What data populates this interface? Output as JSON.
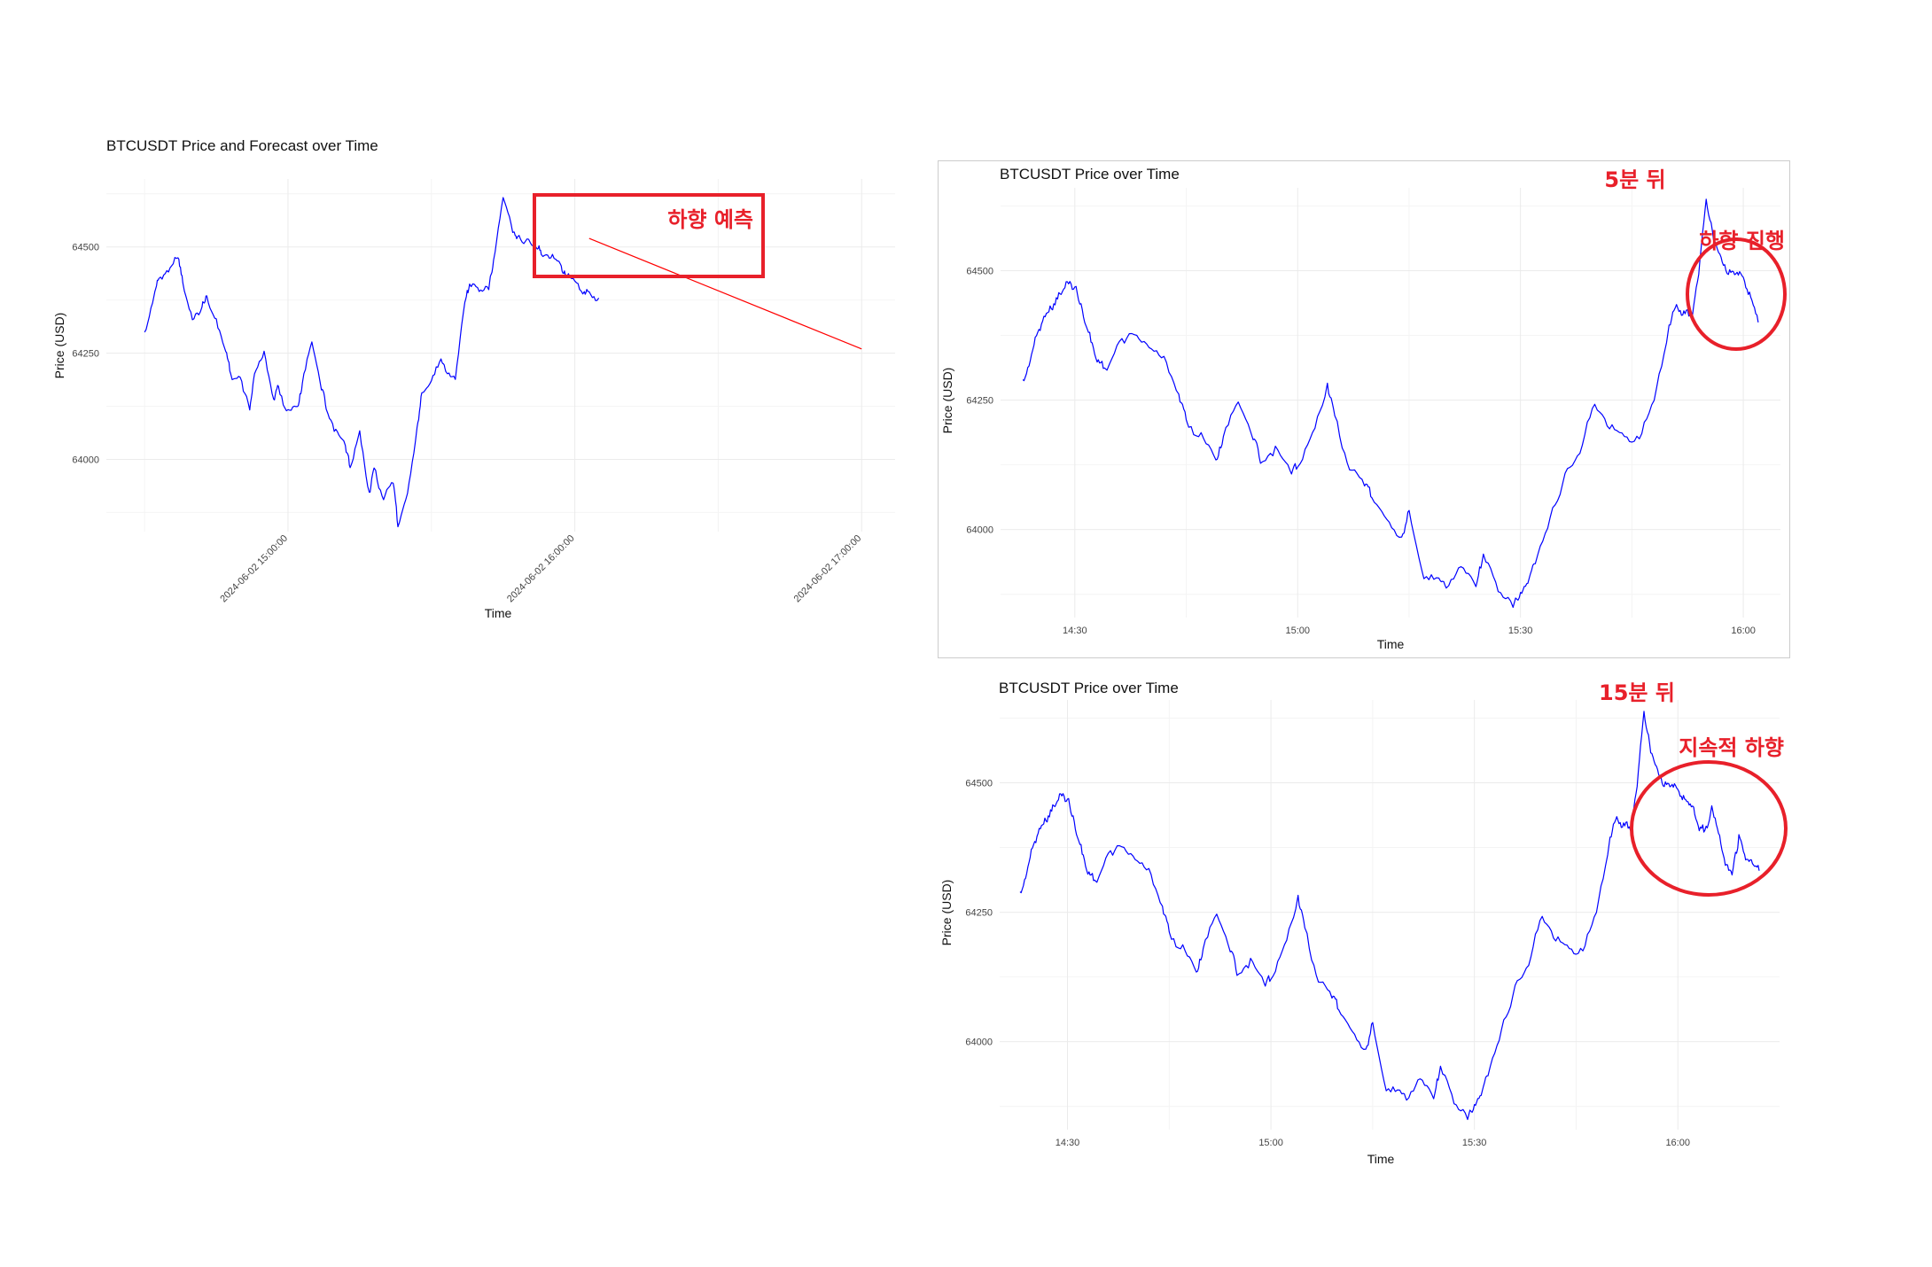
{
  "chart_data": [
    {
      "id": "forecast",
      "type": "line",
      "title": "BTCUSDT Price and Forecast over Time",
      "xlabel": "Time",
      "ylabel": "Price (USD)",
      "xlim": [
        "2024-06-02 14:22",
        "2024-06-02 17:07"
      ],
      "ylim": [
        63830,
        64660
      ],
      "x_ticks": [
        {
          "value": "2024-06-02 15:00",
          "label": "2024-06-02 15:00:00"
        },
        {
          "value": "2024-06-02 16:00",
          "label": "2024-06-02 16:00:00"
        },
        {
          "value": "2024-06-02 17:00",
          "label": "2024-06-02 17:00:00"
        }
      ],
      "y_ticks": [
        {
          "value": 64000,
          "label": "64000"
        },
        {
          "value": 64250,
          "label": "64250"
        },
        {
          "value": 64500,
          "label": "64500"
        }
      ],
      "x_tick_rotation": -45,
      "grid": true,
      "series": [
        {
          "color": "#0000ff",
          "x": [
            "2024-06-02 14:30",
            "2024-06-02 14:32",
            "2024-06-02 14:33",
            "2024-06-02 14:35",
            "2024-06-02 14:37",
            "2024-06-02 14:38",
            "2024-06-02 14:40",
            "2024-06-02 14:42",
            "2024-06-02 14:43",
            "2024-06-02 14:45",
            "2024-06-02 14:47",
            "2024-06-02 14:48",
            "2024-06-02 14:50",
            "2024-06-02 14:52",
            "2024-06-02 14:53",
            "2024-06-02 14:55",
            "2024-06-02 14:57",
            "2024-06-02 14:58",
            "2024-06-02 15:00",
            "2024-06-02 15:02",
            "2024-06-02 15:03",
            "2024-06-02 15:05",
            "2024-06-02 15:07",
            "2024-06-02 15:08",
            "2024-06-02 15:10",
            "2024-06-02 15:12",
            "2024-06-02 15:13",
            "2024-06-02 15:15",
            "2024-06-02 15:17",
            "2024-06-02 15:18",
            "2024-06-02 15:20",
            "2024-06-02 15:22",
            "2024-06-02 15:23",
            "2024-06-02 15:25",
            "2024-06-02 15:27",
            "2024-06-02 15:28",
            "2024-06-02 15:30",
            "2024-06-02 15:32",
            "2024-06-02 15:33",
            "2024-06-02 15:35",
            "2024-06-02 15:37",
            "2024-06-02 15:38",
            "2024-06-02 15:40",
            "2024-06-02 15:42",
            "2024-06-02 15:43",
            "2024-06-02 15:45",
            "2024-06-02 15:47",
            "2024-06-02 15:48",
            "2024-06-02 15:50",
            "2024-06-02 15:52",
            "2024-06-02 15:53",
            "2024-06-02 15:55",
            "2024-06-02 15:57",
            "2024-06-02 15:58",
            "2024-06-02 16:00",
            "2024-06-02 16:02",
            "2024-06-02 16:03",
            "2024-06-02 16:05"
          ],
          "values": [
            64290,
            64390,
            64425,
            64450,
            64480,
            64410,
            64330,
            64360,
            64380,
            64330,
            64260,
            64200,
            64190,
            64120,
            64200,
            64250,
            64140,
            64170,
            64110,
            64130,
            64180,
            64280,
            64170,
            64120,
            64070,
            64030,
            63980,
            64060,
            63920,
            63980,
            63910,
            63950,
            63850,
            63920,
            64070,
            64150,
            64180,
            64250,
            64200,
            64190,
            64380,
            64410,
            64395,
            64400,
            64470,
            64620,
            64540,
            64520,
            64510,
            64500,
            64490,
            64480,
            64460,
            64440,
            64420,
            64400,
            64390,
            64380
          ]
        },
        {
          "color": "#ff0000",
          "x": [
            "2024-06-02 16:03",
            "2024-06-02 17:00"
          ],
          "values": [
            64520,
            64260
          ]
        }
      ],
      "annotations": [
        {
          "type": "box",
          "text": "하향 예측",
          "color": "#e8202a"
        }
      ]
    },
    {
      "id": "after-5min",
      "type": "line",
      "title": "BTCUSDT Price over Time",
      "xlabel": "Time",
      "ylabel": "Price (USD)",
      "xlim": [
        "2024-06-02 14:20",
        "2024-06-02 16:05"
      ],
      "ylim": [
        63830,
        64660
      ],
      "x_ticks": [
        {
          "value": "2024-06-02 14:30",
          "label": "14:30"
        },
        {
          "value": "2024-06-02 15:00",
          "label": "15:00"
        },
        {
          "value": "2024-06-02 15:30",
          "label": "15:30"
        },
        {
          "value": "2024-06-02 16:00",
          "label": "16:00"
        }
      ],
      "y_ticks": [
        {
          "value": 64000,
          "label": "64000"
        },
        {
          "value": 64250,
          "label": "64250"
        },
        {
          "value": 64500,
          "label": "64500"
        }
      ],
      "grid": true,
      "series": [
        {
          "color": "#0000ff",
          "x": [
            "2024-06-02 14:23",
            "2024-06-02 14:24",
            "2024-06-02 14:25",
            "2024-06-02 14:26",
            "2024-06-02 14:27",
            "2024-06-02 14:28",
            "2024-06-02 14:29",
            "2024-06-02 14:30",
            "2024-06-02 14:31",
            "2024-06-02 14:32",
            "2024-06-02 14:33",
            "2024-06-02 14:34",
            "2024-06-02 14:36",
            "2024-06-02 14:38",
            "2024-06-02 14:40",
            "2024-06-02 14:42",
            "2024-06-02 14:44",
            "2024-06-02 14:45",
            "2024-06-02 14:47",
            "2024-06-02 14:49",
            "2024-06-02 14:50",
            "2024-06-02 14:52",
            "2024-06-02 14:54",
            "2024-06-02 14:55",
            "2024-06-02 14:57",
            "2024-06-02 14:59",
            "2024-06-02 15:00",
            "2024-06-02 15:02",
            "2024-06-02 15:04",
            "2024-06-02 15:05",
            "2024-06-02 15:07",
            "2024-06-02 15:09",
            "2024-06-02 15:10",
            "2024-06-02 15:12",
            "2024-06-02 15:14",
            "2024-06-02 15:15",
            "2024-06-02 15:17",
            "2024-06-02 15:19",
            "2024-06-02 15:20",
            "2024-06-02 15:22",
            "2024-06-02 15:24",
            "2024-06-02 15:25",
            "2024-06-02 15:27",
            "2024-06-02 15:29",
            "2024-06-02 15:30",
            "2024-06-02 15:31",
            "2024-06-02 15:32",
            "2024-06-02 15:34",
            "2024-06-02 15:36",
            "2024-06-02 15:38",
            "2024-06-02 15:40",
            "2024-06-02 15:42",
            "2024-06-02 15:44",
            "2024-06-02 15:46",
            "2024-06-02 15:48",
            "2024-06-02 15:50",
            "2024-06-02 15:51",
            "2024-06-02 15:52",
            "2024-06-02 15:53",
            "2024-06-02 15:54",
            "2024-06-02 15:55",
            "2024-06-02 15:56",
            "2024-06-02 15:57",
            "2024-06-02 15:58",
            "2024-06-02 15:59",
            "2024-06-02 16:00",
            "2024-06-02 16:01",
            "2024-06-02 16:02"
          ],
          "values": [
            64280,
            64330,
            64380,
            64420,
            64430,
            64450,
            64480,
            64470,
            64420,
            64380,
            64330,
            64310,
            64360,
            64380,
            64350,
            64330,
            64260,
            64210,
            64180,
            64140,
            64180,
            64250,
            64180,
            64130,
            64160,
            64110,
            64120,
            64180,
            64280,
            64220,
            64120,
            64090,
            64070,
            64020,
            63980,
            64030,
            63900,
            63920,
            63880,
            63930,
            63900,
            63950,
            63880,
            63850,
            63880,
            63900,
            63940,
            64020,
            64100,
            64150,
            64250,
            64200,
            64180,
            64180,
            64250,
            64400,
            64430,
            64420,
            64410,
            64500,
            64640,
            64560,
            64520,
            64500,
            64490,
            64480,
            64450,
            64400
          ]
        }
      ],
      "annotations": [
        {
          "type": "label",
          "text": "5분 뒤",
          "color": "#e8202a"
        },
        {
          "type": "circle",
          "text": "하향 진행",
          "color": "#e8202a"
        }
      ]
    },
    {
      "id": "after-15min",
      "type": "line",
      "title": "BTCUSDT Price over Time",
      "xlabel": "Time",
      "ylabel": "Price (USD)",
      "xlim": [
        "2024-06-02 14:20",
        "2024-06-02 16:15"
      ],
      "ylim": [
        63830,
        64660
      ],
      "x_ticks": [
        {
          "value": "2024-06-02 14:30",
          "label": "14:30"
        },
        {
          "value": "2024-06-02 15:00",
          "label": "15:00"
        },
        {
          "value": "2024-06-02 15:30",
          "label": "15:30"
        },
        {
          "value": "2024-06-02 16:00",
          "label": "16:00"
        }
      ],
      "y_ticks": [
        {
          "value": 64000,
          "label": "64000"
        },
        {
          "value": 64250,
          "label": "64250"
        },
        {
          "value": 64500,
          "label": "64500"
        }
      ],
      "grid": true,
      "series": [
        {
          "color": "#0000ff",
          "x": [
            "2024-06-02 14:23",
            "2024-06-02 14:24",
            "2024-06-02 14:25",
            "2024-06-02 14:26",
            "2024-06-02 14:27",
            "2024-06-02 14:28",
            "2024-06-02 14:29",
            "2024-06-02 14:30",
            "2024-06-02 14:31",
            "2024-06-02 14:32",
            "2024-06-02 14:33",
            "2024-06-02 14:34",
            "2024-06-02 14:36",
            "2024-06-02 14:38",
            "2024-06-02 14:40",
            "2024-06-02 14:42",
            "2024-06-02 14:44",
            "2024-06-02 14:45",
            "2024-06-02 14:47",
            "2024-06-02 14:49",
            "2024-06-02 14:50",
            "2024-06-02 14:52",
            "2024-06-02 14:54",
            "2024-06-02 14:55",
            "2024-06-02 14:57",
            "2024-06-02 14:59",
            "2024-06-02 15:00",
            "2024-06-02 15:02",
            "2024-06-02 15:04",
            "2024-06-02 15:05",
            "2024-06-02 15:07",
            "2024-06-02 15:09",
            "2024-06-02 15:10",
            "2024-06-02 15:12",
            "2024-06-02 15:14",
            "2024-06-02 15:15",
            "2024-06-02 15:17",
            "2024-06-02 15:19",
            "2024-06-02 15:20",
            "2024-06-02 15:22",
            "2024-06-02 15:24",
            "2024-06-02 15:25",
            "2024-06-02 15:27",
            "2024-06-02 15:29",
            "2024-06-02 15:30",
            "2024-06-02 15:31",
            "2024-06-02 15:32",
            "2024-06-02 15:34",
            "2024-06-02 15:36",
            "2024-06-02 15:38",
            "2024-06-02 15:40",
            "2024-06-02 15:42",
            "2024-06-02 15:44",
            "2024-06-02 15:46",
            "2024-06-02 15:48",
            "2024-06-02 15:50",
            "2024-06-02 15:51",
            "2024-06-02 15:52",
            "2024-06-02 15:53",
            "2024-06-02 15:54",
            "2024-06-02 15:55",
            "2024-06-02 15:56",
            "2024-06-02 15:57",
            "2024-06-02 15:58",
            "2024-06-02 15:59",
            "2024-06-02 16:00",
            "2024-06-02 16:01",
            "2024-06-02 16:02",
            "2024-06-02 16:03",
            "2024-06-02 16:04",
            "2024-06-02 16:05",
            "2024-06-02 16:06",
            "2024-06-02 16:07",
            "2024-06-02 16:08",
            "2024-06-02 16:09",
            "2024-06-02 16:10",
            "2024-06-02 16:11",
            "2024-06-02 16:12"
          ],
          "values": [
            64280,
            64330,
            64380,
            64420,
            64430,
            64450,
            64480,
            64470,
            64420,
            64380,
            64330,
            64310,
            64360,
            64380,
            64350,
            64330,
            64260,
            64210,
            64180,
            64140,
            64180,
            64250,
            64180,
            64130,
            64160,
            64110,
            64120,
            64180,
            64280,
            64220,
            64120,
            64090,
            64070,
            64020,
            63980,
            64030,
            63900,
            63920,
            63880,
            63930,
            63900,
            63950,
            63880,
            63850,
            63880,
            63900,
            63940,
            64020,
            64100,
            64150,
            64250,
            64200,
            64180,
            64180,
            64250,
            64400,
            64430,
            64420,
            64410,
            64500,
            64640,
            64560,
            64520,
            64500,
            64490,
            64480,
            64470,
            64450,
            64420,
            64400,
            64450,
            64400,
            64350,
            64320,
            64400,
            64350,
            64340,
            64330
          ]
        }
      ],
      "annotations": [
        {
          "type": "label",
          "text": "15분 뒤",
          "color": "#e8202a"
        },
        {
          "type": "circle",
          "text": "지속적 하향",
          "color": "#e8202a"
        }
      ]
    }
  ]
}
